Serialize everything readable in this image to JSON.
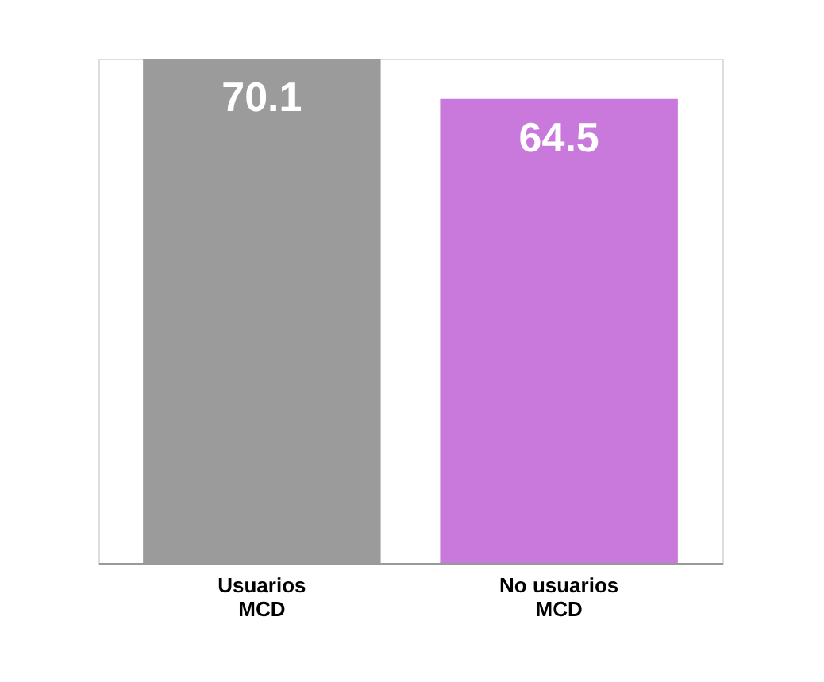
{
  "chart_data": {
    "type": "bar",
    "categories": [
      "Usuarios\nMCD",
      "No usuarios\nMCD"
    ],
    "values": [
      70.1,
      64.5
    ],
    "colors": [
      "#9b9b9b",
      "#c978dc"
    ],
    "data_labels": true,
    "grid": false
  }
}
